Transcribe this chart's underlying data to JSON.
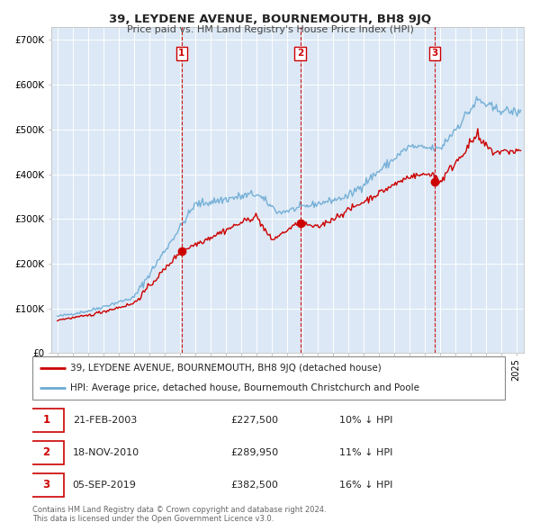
{
  "title": "39, LEYDENE AVENUE, BOURNEMOUTH, BH8 9JQ",
  "subtitle": "Price paid vs. HM Land Registry's House Price Index (HPI)",
  "legend_line1": "39, LEYDENE AVENUE, BOURNEMOUTH, BH8 9JQ (detached house)",
  "legend_line2": "HPI: Average price, detached house, Bournemouth Christchurch and Poole",
  "footnote1": "Contains HM Land Registry data © Crown copyright and database right 2024.",
  "footnote2": "This data is licensed under the Open Government Licence v3.0.",
  "sale_color": "#cc0000",
  "hpi_color": "#a8c8e8",
  "hpi_line_color": "#6aaad4",
  "background_color": "#dce8f5",
  "grid_color": "#ffffff",
  "sales": [
    {
      "date_num": 2003.13,
      "price": 227500,
      "label": "1",
      "label_date": "21-FEB-2003",
      "price_str": "£227,500",
      "pct": "10% ↓ HPI"
    },
    {
      "date_num": 2010.88,
      "price": 289950,
      "label": "2",
      "label_date": "18-NOV-2010",
      "price_str": "£289,950",
      "pct": "11% ↓ HPI"
    },
    {
      "date_num": 2019.67,
      "price": 382500,
      "label": "3",
      "label_date": "05-SEP-2019",
      "price_str": "£382,500",
      "pct": "16% ↓ HPI"
    }
  ],
  "ylim": [
    0,
    730000
  ],
  "yticks": [
    0,
    100000,
    200000,
    300000,
    400000,
    500000,
    600000,
    700000
  ],
  "ytick_labels": [
    "£0",
    "£100K",
    "£200K",
    "£300K",
    "£400K",
    "£500K",
    "£600K",
    "£700K"
  ],
  "xlim_start": 1994.6,
  "xlim_end": 2025.5
}
